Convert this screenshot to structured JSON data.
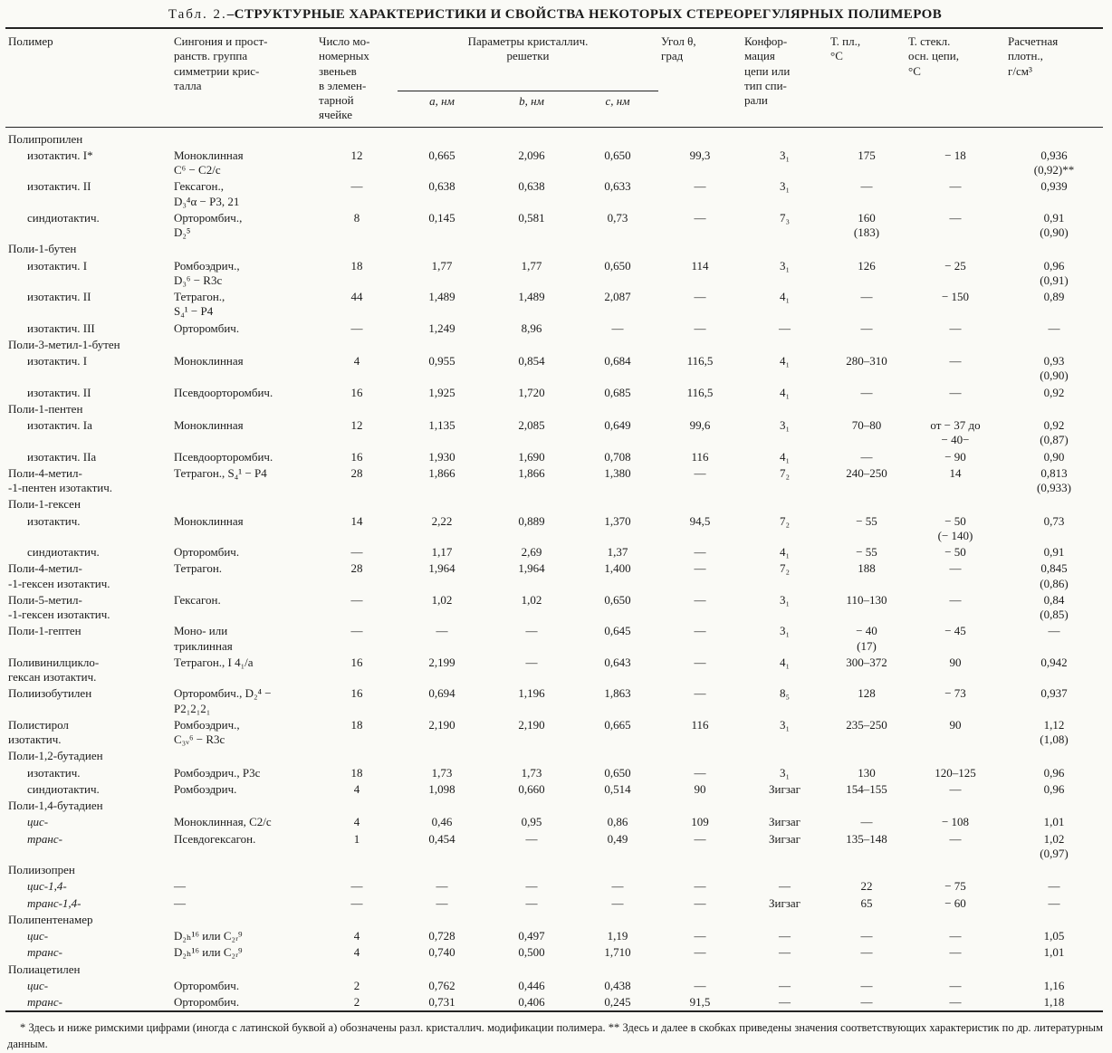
{
  "title": {
    "prefix": "Табл. 2.",
    "main": "–СТРУКТУРНЫЕ ХАРАКТЕРИСТИКИ И СВОЙСТВА НЕКОТОРЫХ СТЕРЕОРЕГУЛЯРНЫХ ПОЛИМЕРОВ"
  },
  "table": {
    "headers": {
      "polymer": "Полимер",
      "syngony": "Сингония и прост-\nранств. группа\nсимметрии крис-\nталла",
      "units": "Число мо-\nномерных\nзвеньев\nв элемен-\nтарной\nячейке",
      "lattice_group": "Параметры кристаллич.\nрешетки",
      "a": "a, нм",
      "b": "b, нм",
      "c": "c, нм",
      "angle": "Угол θ,\nград",
      "conformation": "Конфор-\nмация\nцепи или\nтип спи-\nрали",
      "tmelt": "Т. пл.,\n°С",
      "tglass": "Т. стекл.\nосн. цепи,\n°С",
      "density": "Расчетная\nплотн.,\nг/см³"
    },
    "rows": [
      {
        "p": "Полипропилен",
        "section": true
      },
      {
        "p": "изотактич. I*",
        "indent": true,
        "c": [
          "Моноклинная\nC⁶ − C2/c",
          "12",
          "0,665",
          "2,096",
          "0,650",
          "99,3",
          "3₁",
          "175",
          "− 18",
          "0,936\n(0,92)**"
        ]
      },
      {
        "p": "изотактич. II",
        "indent": true,
        "c": [
          "Гексагон.,\nD₃⁴α − P3, 21",
          "—",
          "0,638",
          "0,638",
          "0,633",
          "—",
          "3₁",
          "—",
          "—",
          "0,939"
        ]
      },
      {
        "p": "синдиотактич.",
        "indent": true,
        "c": [
          "Орторомбич.,\nD₂⁵",
          "8",
          "0,145",
          "0,581",
          "0,73",
          "—",
          "7₃",
          "160\n(183)",
          "—",
          "0,91\n(0,90)"
        ]
      },
      {
        "p": "Поли-1-бутен",
        "section": true
      },
      {
        "p": "изотактич. I",
        "indent": true,
        "c": [
          "Ромбоэдрич.,\nD₃⁶ − R3c",
          "18",
          "1,77",
          "1,77",
          "0,650",
          "114",
          "3₁",
          "126",
          "− 25",
          "0,96\n(0,91)"
        ]
      },
      {
        "p": "изотактич. II",
        "indent": true,
        "c": [
          "Тетрагон.,\nS₄¹ − P4",
          "44",
          "1,489",
          "1,489",
          "2,087",
          "—",
          "4₁",
          "—",
          "− 150",
          "0,89"
        ]
      },
      {
        "p": "изотактич. III",
        "indent": true,
        "c": [
          "Орторомбич.",
          "—",
          "1,249",
          "8,96",
          "—",
          "—",
          "—",
          "—",
          "—",
          "—"
        ]
      },
      {
        "p": "Поли-3-метил-1-бутен",
        "section": true
      },
      {
        "p": "изотактич. I",
        "indent": true,
        "c": [
          "Моноклинная",
          "4",
          "0,955",
          "0,854",
          "0,684",
          "116,5",
          "4₁",
          "280–310",
          "—",
          "0,93\n(0,90)"
        ]
      },
      {
        "p": "изотактич. II",
        "indent": true,
        "c": [
          "Псевдоорторомбич.",
          "16",
          "1,925",
          "1,720",
          "0,685",
          "116,5",
          "4₁",
          "—",
          "—",
          "0,92"
        ]
      },
      {
        "p": "Поли-1-пентен",
        "section": true
      },
      {
        "p": "изотактич. Iа",
        "indent": true,
        "c": [
          "Моноклинная",
          "12",
          "1,135",
          "2,085",
          "0,649",
          "99,6",
          "3₁",
          "70–80",
          "от − 37 до\n− 40−",
          "0,92\n(0,87)"
        ]
      },
      {
        "p": "изотактич. IIа",
        "indent": true,
        "c": [
          "Псевдоорторомбич.",
          "16",
          "1,930",
          "1,690",
          "0,708",
          "116",
          "4₁",
          "—",
          "− 90",
          "0,90"
        ]
      },
      {
        "p": "Поли-4-метил-\n-1-пентен изотактич.",
        "c": [
          "Тетрагон., S₄¹ − P4",
          "28",
          "1,866",
          "1,866",
          "1,380",
          "—",
          "7₂",
          "240–250",
          "14",
          "0,813\n(0,933)"
        ]
      },
      {
        "p": "Поли-1-гексен",
        "section": true
      },
      {
        "p": "изотактич.",
        "indent": true,
        "c": [
          "Моноклинная",
          "14",
          "2,22",
          "0,889",
          "1,370",
          "94,5",
          "7₂",
          "− 55",
          "− 50\n(− 140)",
          "0,73"
        ]
      },
      {
        "p": "синдиотактич.",
        "indent": true,
        "c": [
          "Орторомбич.",
          "—",
          "1,17",
          "2,69",
          "1,37",
          "—",
          "4₁",
          "− 55",
          "− 50",
          "0,91"
        ]
      },
      {
        "p": "Поли-4-метил-\n-1-гексен изотактич.",
        "c": [
          "Тетрагон.",
          "28",
          "1,964",
          "1,964",
          "1,400",
          "—",
          "7₂",
          "188",
          "—",
          "0,845\n(0,86)"
        ]
      },
      {
        "p": "Поли-5-метил-\n -1-гексен изотактич.",
        "c": [
          "Гексагон.",
          "—",
          "1,02",
          "1,02",
          "0,650",
          "—",
          "3₁",
          "110–130",
          "—",
          "0,84\n(0,85)"
        ]
      },
      {
        "p": "Поли-1-гептен",
        "c": [
          "Моно- или\nтриклинная",
          "—",
          "—",
          "—",
          "0,645",
          "—",
          "3₁",
          "− 40\n(17)",
          "− 45",
          "—"
        ]
      },
      {
        "p": "Поливинилцикло-\nгексан изотактич.",
        "c": [
          "Тетрагон., I 4₁/a",
          "16",
          "2,199",
          "—",
          "0,643",
          "—",
          "4₁",
          "300–372",
          "90",
          "0,942"
        ]
      },
      {
        "p": "Полиизобутилен",
        "c": [
          "Орторомбич., D₂⁴ −\nP2₁2₁2₁",
          "16",
          "0,694",
          "1,196",
          "1,863",
          "—",
          "8₅",
          "128",
          "− 73",
          "0,937"
        ]
      },
      {
        "p": "Полистирол\nизотактич.",
        "c": [
          "Ромбоэдрич.,\nC₃ᵥ⁶ − R3c",
          "18",
          "2,190",
          "2,190",
          "0,665",
          "116",
          "3₁",
          "235–250",
          "90",
          "1,12\n(1,08)"
        ]
      },
      {
        "p": "Поли-1,2-бутадиен",
        "section": true
      },
      {
        "p": "изотактич.",
        "indent": true,
        "c": [
          "Ромбоэдрич., P3c",
          "18",
          "1,73",
          "1,73",
          "0,650",
          "—",
          "3₁",
          "130",
          "120–125",
          "0,96"
        ]
      },
      {
        "p": "синдиотактич.",
        "indent": true,
        "c": [
          "Ромбоэдрич.",
          "4",
          "1,098",
          "0,660",
          "0,514",
          "90",
          "Зигзаг",
          "154–155",
          "—",
          "0,96"
        ]
      },
      {
        "p": "Поли-1,4-бутадиен",
        "section": true
      },
      {
        "p": "цис-",
        "indent": true,
        "italic": true,
        "c": [
          "Моноклинная, C2/c",
          "4",
          "0,46",
          "0,95",
          "0,86",
          "109",
          "Зигзаг",
          "—",
          "− 108",
          "1,01"
        ]
      },
      {
        "p": "транс-",
        "indent": true,
        "italic": true,
        "c": [
          "Псевдогексагон.",
          "1",
          "0,454",
          "—",
          "0,49",
          "—",
          "Зигзаг",
          "135–148",
          "—",
          "1,02\n(0,97)"
        ]
      },
      {
        "p": "Полиизопрен",
        "section": true
      },
      {
        "p": "цис-1,4-",
        "indent": true,
        "italic": true,
        "c": [
          "—",
          "—",
          "—",
          "—",
          "—",
          "—",
          "—",
          "22",
          "− 75",
          "—"
        ]
      },
      {
        "p": "транс-1,4-",
        "indent": true,
        "italic": true,
        "c": [
          "—",
          "—",
          "—",
          "—",
          "—",
          "—",
          "Зигзаг",
          "65",
          "− 60",
          "—"
        ]
      },
      {
        "p": "Полипентенамер",
        "section": true
      },
      {
        "p": "цис-",
        "indent": true,
        "italic": true,
        "c": [
          "D₂ₕ¹⁶ или C₂ᵣ⁹",
          "4",
          "0,728",
          "0,497",
          "1,19",
          "—",
          "—",
          "—",
          "—",
          "1,05"
        ]
      },
      {
        "p": "транс-",
        "indent": true,
        "italic": true,
        "c": [
          "D₂ₕ¹⁶ или C₂ᵣ⁹",
          "4",
          "0,740",
          "0,500",
          "1,710",
          "—",
          "—",
          "—",
          "—",
          "1,01"
        ]
      },
      {
        "p": "Полиацетилен",
        "section": true
      },
      {
        "p": "цис-",
        "indent": true,
        "italic": true,
        "c": [
          "Орторомбич.",
          "2",
          "0,762",
          "0,446",
          "0,438",
          "—",
          "—",
          "—",
          "—",
          "1,16"
        ]
      },
      {
        "p": "транс-",
        "indent": true,
        "italic": true,
        "c": [
          "Орторомбич.",
          "2",
          "0,731",
          "0,406",
          "0,245",
          "91,5",
          "—",
          "—",
          "—",
          "1,18"
        ]
      }
    ]
  },
  "footnote": "* Здесь и ниже римскими цифрами (иногда с латинской буквой а) обозначены разл. кристаллич. модификации полимера. ** Здесь и далее в скобках приведены значения соответствующих характеристик по др. литературным данным."
}
